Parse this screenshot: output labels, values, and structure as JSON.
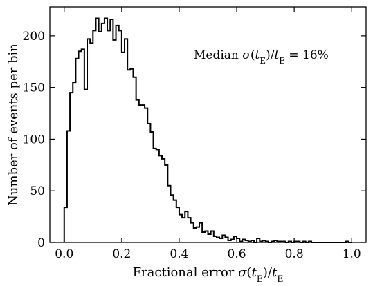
{
  "chart_data": {
    "type": "histogram",
    "xlabel": "Fractional error σ(t_E)/t_E",
    "ylabel": "Number of events per bin",
    "annotation": "Median σ(t_E)/t_E = 16%",
    "xlim": [
      -0.05,
      1.05
    ],
    "ylim": [
      0,
      228
    ],
    "xticks": [
      "0.0",
      "0.2",
      "0.4",
      "0.6",
      "0.8",
      "1.0"
    ],
    "xtick_values": [
      0,
      0.2,
      0.4,
      0.6,
      0.8,
      1.0
    ],
    "yticks": [
      "0",
      "50",
      "100",
      "150",
      "200"
    ],
    "ytick_values": [
      0,
      50,
      100,
      150,
      200
    ],
    "bin_start": 0,
    "bin_width": 0.01,
    "counts": [
      34,
      108,
      145,
      155,
      178,
      185,
      187,
      148,
      197,
      193,
      205,
      217,
      204,
      212,
      217,
      205,
      216,
      196,
      210,
      205,
      184,
      197,
      167,
      168,
      160,
      138,
      133,
      133,
      130,
      115,
      107,
      91,
      90,
      84,
      81,
      75,
      55,
      46,
      41,
      34,
      27,
      24,
      30,
      24,
      19,
      14,
      15,
      19,
      10,
      11,
      8,
      11,
      6,
      5,
      4,
      7,
      5,
      2,
      3,
      6,
      4,
      1,
      3,
      2,
      1,
      2,
      0,
      4,
      1,
      2,
      1,
      0,
      1,
      2,
      1,
      1,
      1,
      0,
      1,
      0,
      1,
      1,
      0,
      1,
      0,
      1,
      0,
      0,
      0,
      0,
      0,
      0,
      0,
      0,
      0,
      0,
      0,
      0,
      1,
      0
    ],
    "grid": false
  }
}
